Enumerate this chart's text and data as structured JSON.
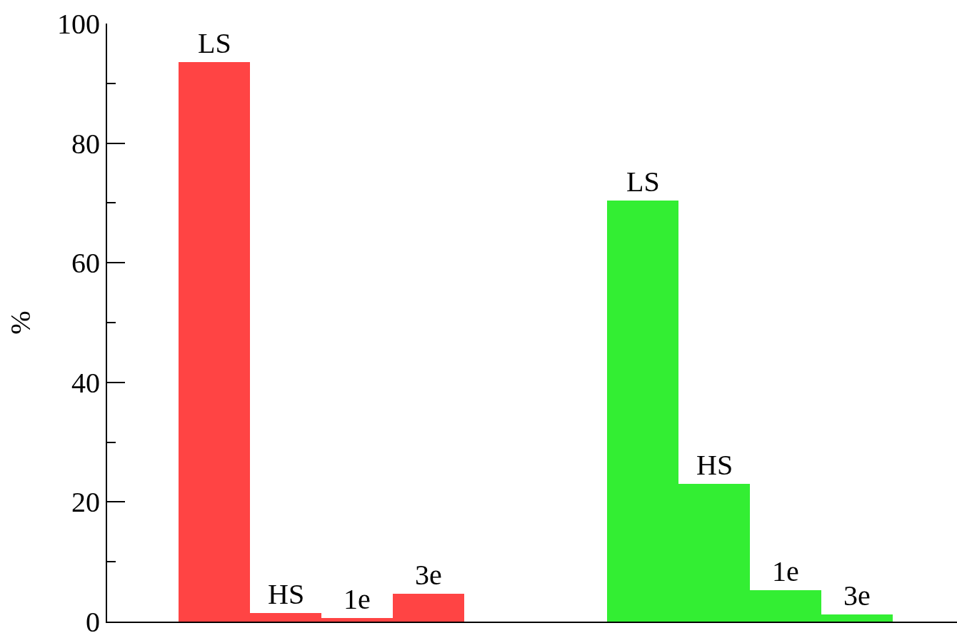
{
  "chart_data": {
    "type": "bar",
    "ylabel": "%",
    "categories": [
      "LS",
      "HS",
      "1e",
      "3e",
      null,
      null,
      "LS",
      "HS",
      "1e",
      "3e"
    ],
    "values": [
      93.5,
      1.4,
      0.6,
      4.6,
      null,
      null,
      70.4,
      23.0,
      5.2,
      1.2
    ],
    "colors": [
      "#ff4444",
      "#ff4444",
      "#ff4444",
      "#ff4444",
      null,
      null,
      "#33ee33",
      "#33ee33",
      "#33ee33",
      "#33ee33"
    ],
    "ylim": [
      0,
      100
    ],
    "yticks": [
      0,
      20,
      40,
      60,
      80,
      100
    ]
  }
}
